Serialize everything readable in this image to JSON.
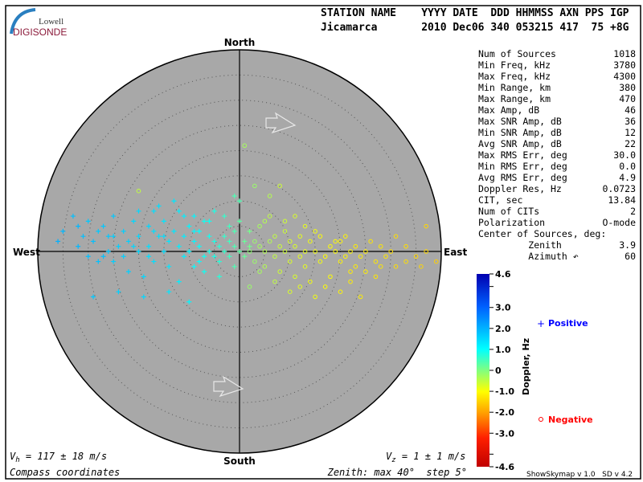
{
  "logo": {
    "line1": "Lowell",
    "line2": "DIGISONDE"
  },
  "header": {
    "labels": "STATION NAME    YYYY DATE  DDD HHMMSS AXN PPS IGP",
    "values": "Jicamarca       2010 Dec06 340 053215 417  75 +8G"
  },
  "compass": {
    "north": "North",
    "south": "South",
    "east": "East",
    "west": "West"
  },
  "stats": [
    {
      "label": "Num of Sources",
      "value": "1018"
    },
    {
      "label": "Min Freq, kHz",
      "value": "3780"
    },
    {
      "label": "Max Freq, kHz",
      "value": "4300"
    },
    {
      "label": "Min Range, km",
      "value": "380"
    },
    {
      "label": "Max Range, km",
      "value": "470"
    },
    {
      "label": "Max Amp, dB",
      "value": "46"
    },
    {
      "label": "Max SNR Amp, dB",
      "value": "36"
    },
    {
      "label": "Min SNR Amp, dB",
      "value": "12"
    },
    {
      "label": "Avg SNR Amp, dB",
      "value": "22"
    },
    {
      "label": "Max RMS Err, deg",
      "value": "30.0"
    },
    {
      "label": "Min RMS Err, deg",
      "value": "0.0"
    },
    {
      "label": "Avg RMS Err, deg",
      "value": "4.9"
    },
    {
      "label": "Doppler Res, Hz",
      "value": "0.0723"
    },
    {
      "label": "CIT, sec",
      "value": "13.84"
    },
    {
      "label": "Num of CITs",
      "value": "2"
    },
    {
      "label": "Polarization",
      "value": "O-mode"
    },
    {
      "label": "Center of Sources, deg:",
      "value": ""
    },
    {
      "label": "         Zenith",
      "value": "3.9"
    },
    {
      "label": "         Azimuth ↶",
      "value": "60"
    }
  ],
  "footer": {
    "vh": "117 ± 18 m/s",
    "vz": "1 ± 1 m/s",
    "coords": "Compass coordinates",
    "zenith": "Zenith: max 40°  step 5°",
    "version": "ShowSkymap v 1.0   SD v 4.2"
  },
  "legend": {
    "positive": "Positive",
    "negative": "Negative",
    "positive_color": "#0000ff",
    "negative_color": "#ff0000"
  },
  "colors": {
    "plot_bg": "#a8a8a8",
    "logo_text": "#8b1a3a",
    "logo_arc": "#2a7fc0"
  },
  "chart_data": {
    "type": "scatter",
    "projection": "polar skymap, zenith angle radial",
    "zenith_max_deg": 40,
    "zenith_step_deg": 5,
    "colorbar": {
      "label": "Doppler, Hz",
      "range": [
        -4.6,
        4.6
      ],
      "ticks": [
        "4.6",
        "3.0",
        "2.0",
        "1.0",
        "0",
        "-1.0",
        "-2.0",
        "-3.0",
        "-4.6"
      ],
      "colormap": "jet"
    },
    "point_format": [
      "east_deg",
      "north_deg",
      "doppler_hz"
    ],
    "points": [
      [
        -35,
        4,
        1.9
      ],
      [
        -33,
        7,
        1.8
      ],
      [
        -32,
        5,
        1.9
      ],
      [
        -31,
        3,
        1.8
      ],
      [
        -30,
        6,
        1.7
      ],
      [
        -29,
        2,
        1.8
      ],
      [
        -28,
        4,
        1.7
      ],
      [
        -27,
        -1,
        1.8
      ],
      [
        -27,
        5,
        1.7
      ],
      [
        -26,
        3,
        1.7
      ],
      [
        -25,
        -2,
        1.6
      ],
      [
        -25,
        7,
        1.7
      ],
      [
        -24,
        1,
        1.6
      ],
      [
        -23,
        4,
        1.6
      ],
      [
        -22,
        -4,
        1.6
      ],
      [
        -22,
        2,
        1.6
      ],
      [
        -21,
        6,
        1.5
      ],
      [
        -20,
        0,
        1.5
      ],
      [
        -20,
        3,
        1.5
      ],
      [
        -19,
        -5,
        1.5
      ],
      [
        -18,
        5,
        1.5
      ],
      [
        -18,
        1,
        1.4
      ],
      [
        -17,
        -2,
        1.4
      ],
      [
        -17,
        8,
        1.4
      ],
      [
        -16,
        3,
        1.4
      ],
      [
        -15,
        0,
        1.4
      ],
      [
        -15,
        6,
        1.3
      ],
      [
        -14,
        -3,
        1.3
      ],
      [
        -14,
        2,
        1.3
      ],
      [
        -13,
        4,
        1.3
      ],
      [
        -12,
        1,
        1.2
      ],
      [
        -12,
        -6,
        1.2
      ],
      [
        -11,
        3,
        1.2
      ],
      [
        -11,
        7,
        1.2
      ],
      [
        -10,
        0,
        1.1
      ],
      [
        -10,
        5,
        1.1
      ],
      [
        -9,
        2,
        1.1
      ],
      [
        -9,
        -3,
        1.0
      ],
      [
        -8,
        4,
        1.0
      ],
      [
        -8,
        1,
        1.0
      ],
      [
        -7,
        6,
        0.9
      ],
      [
        -7,
        -1,
        0.9
      ],
      [
        -6,
        3,
        0.9
      ],
      [
        -6,
        0,
        0.8
      ],
      [
        -5,
        2,
        0.8
      ],
      [
        -5,
        8,
        0.8
      ],
      [
        -4,
        -2,
        0.7
      ],
      [
        -4,
        1,
        0.7
      ],
      [
        -3,
        3,
        0.6
      ],
      [
        -3,
        0,
        0.6
      ],
      [
        -2,
        2,
        0.5
      ],
      [
        -2,
        -1,
        0.5
      ],
      [
        -1,
        4,
        0.4
      ],
      [
        -1,
        1,
        0.4
      ],
      [
        0,
        0,
        0.3
      ],
      [
        0,
        10,
        0.4
      ],
      [
        -24,
        -8,
        1.6
      ],
      [
        -28,
        -2,
        1.8
      ],
      [
        -30,
        -1,
        1.8
      ],
      [
        -36,
        2,
        2.0
      ],
      [
        -19,
        -9,
        1.5
      ],
      [
        -14,
        -8,
        1.3
      ],
      [
        -10,
        -10,
        1.1
      ],
      [
        -29,
        -9,
        1.7
      ],
      [
        -7,
        -4,
        0.9
      ],
      [
        -4,
        -5,
        0.7
      ],
      [
        -16,
        9,
        1.4
      ],
      [
        -13,
        10,
        1.3
      ],
      [
        -21,
        1,
        1.5
      ],
      [
        -26,
        0,
        1.7
      ],
      [
        -32,
        1,
        1.9
      ],
      [
        -23,
        -1,
        1.6
      ],
      [
        -18,
        -1,
        1.4
      ],
      [
        -11,
        -1,
        1.2
      ],
      [
        -8,
        -2,
        1.0
      ],
      [
        -5,
        -1,
        0.8
      ],
      [
        -2,
        5,
        0.5
      ],
      [
        -1,
        -3,
        0.4
      ],
      [
        1,
        2,
        0.2
      ],
      [
        1,
        -1,
        0.2
      ],
      [
        2,
        1,
        0.1
      ],
      [
        2,
        4,
        0.1
      ],
      [
        -9,
        7,
        1.1
      ],
      [
        -6,
        6,
        0.9
      ],
      [
        -3,
        7,
        0.6
      ],
      [
        -1,
        11,
        0.4
      ],
      [
        0,
        6,
        0.3
      ],
      [
        -12,
        8,
        1.2
      ],
      [
        -20,
        8,
        1.5
      ],
      [
        -25,
        3,
        1.6
      ],
      [
        -15,
        3,
        1.4
      ],
      [
        -17,
        4,
        1.4
      ],
      [
        -9,
        4,
        1.1
      ],
      [
        1,
        21,
        -0.3
      ],
      [
        2,
        0,
        -0.1
      ],
      [
        3,
        2,
        -0.2
      ],
      [
        3,
        -2,
        -0.2
      ],
      [
        4,
        1,
        -0.3
      ],
      [
        4,
        5,
        -0.3
      ],
      [
        5,
        0,
        -0.4
      ],
      [
        5,
        -3,
        -0.4
      ],
      [
        6,
        2,
        -0.4
      ],
      [
        6,
        7,
        -0.5
      ],
      [
        7,
        -1,
        -0.5
      ],
      [
        7,
        3,
        -0.5
      ],
      [
        8,
        1,
        -0.6
      ],
      [
        8,
        -4,
        -0.6
      ],
      [
        9,
        0,
        -0.6
      ],
      [
        9,
        4,
        -0.6
      ],
      [
        10,
        -2,
        -0.7
      ],
      [
        10,
        2,
        -0.7
      ],
      [
        11,
        1,
        -0.7
      ],
      [
        11,
        -5,
        -0.7
      ],
      [
        12,
        -1,
        -0.8
      ],
      [
        12,
        3,
        -0.8
      ],
      [
        13,
        0,
        -0.8
      ],
      [
        13,
        -3,
        -0.8
      ],
      [
        14,
        2,
        -0.9
      ],
      [
        14,
        -6,
        -0.9
      ],
      [
        15,
        0,
        -0.9
      ],
      [
        16,
        -2,
        -0.9
      ],
      [
        16,
        3,
        -1.0
      ],
      [
        17,
        -1,
        -1.0
      ],
      [
        18,
        1,
        -1.0
      ],
      [
        18,
        -5,
        -1.0
      ],
      [
        19,
        0,
        -1.0
      ],
      [
        20,
        -2,
        -1.1
      ],
      [
        20,
        2,
        -1.1
      ],
      [
        21,
        -1,
        -1.1
      ],
      [
        22,
        0,
        -1.1
      ],
      [
        22,
        -6,
        -1.2
      ],
      [
        23,
        1,
        -1.2
      ],
      [
        23,
        -3,
        -1.2
      ],
      [
        24,
        -1,
        -1.2
      ],
      [
        25,
        0,
        -1.2
      ],
      [
        25,
        -4,
        -1.2
      ],
      [
        26,
        2,
        -1.3
      ],
      [
        27,
        -2,
        -1.3
      ],
      [
        28,
        1,
        -1.3
      ],
      [
        29,
        -1,
        -1.3
      ],
      [
        30,
        0,
        -1.4
      ],
      [
        31,
        -3,
        -1.4
      ],
      [
        33,
        1,
        -1.4
      ],
      [
        35,
        -1,
        -1.5
      ],
      [
        37,
        0,
        -1.5
      ],
      [
        39,
        -2,
        -1.6
      ],
      [
        37,
        5,
        -1.5
      ],
      [
        31,
        3,
        -1.4
      ],
      [
        20,
        -8,
        -1.1
      ],
      [
        15,
        -9,
        -0.9
      ],
      [
        24,
        -9,
        -1.2
      ],
      [
        12,
        -7,
        -0.8
      ],
      [
        6,
        11,
        -0.4
      ],
      [
        8,
        13,
        -0.6
      ],
      [
        3,
        13,
        -0.2
      ],
      [
        9,
        6,
        -0.6
      ],
      [
        11,
        7,
        -0.7
      ],
      [
        5,
        6,
        -0.4
      ],
      [
        10,
        -8,
        -0.7
      ],
      [
        17,
        -7,
        -1.0
      ],
      [
        27,
        -5,
        -1.3
      ],
      [
        28,
        -3,
        -1.3
      ],
      [
        22,
        -4,
        -1.2
      ],
      [
        19,
        2,
        -1.0
      ],
      [
        15,
        4,
        -0.9
      ],
      [
        13,
        5,
        -0.8
      ],
      [
        7,
        -6,
        -0.5
      ],
      [
        4,
        -4,
        -0.3
      ],
      [
        -20,
        12,
        -0.5
      ],
      [
        2,
        -7,
        -0.2
      ],
      [
        21,
        3,
        -1.1
      ],
      [
        33,
        -2,
        -1.4
      ],
      [
        36,
        -3,
        -1.5
      ]
    ]
  }
}
